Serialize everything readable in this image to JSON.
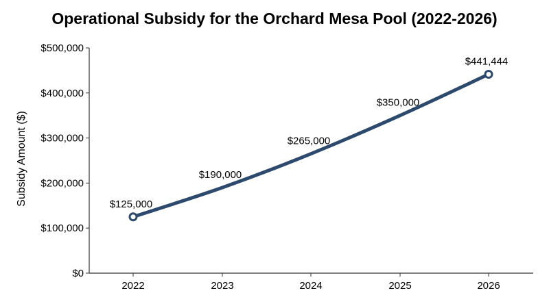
{
  "chart_data": {
    "type": "line",
    "title": "Operational Subsidy for the Orchard Mesa Pool (2022-2026)",
    "xlabel": "",
    "ylabel": "Subsidy Amount ($)",
    "categories": [
      "2022",
      "2023",
      "2024",
      "2025",
      "2026"
    ],
    "series": [
      {
        "values": [
          125000,
          190000,
          265000,
          350000,
          441444
        ],
        "data_labels": [
          "$125,000",
          "$190,000",
          "$265,000",
          "$350,000",
          "$441,444"
        ],
        "color": "#2d4a6e"
      }
    ],
    "ylim": [
      0,
      500000
    ],
    "yticks": [
      0,
      100000,
      200000,
      300000,
      400000,
      500000
    ],
    "ytick_labels": [
      "$0",
      "$100,000",
      "$200,000",
      "$300,000",
      "$400,000",
      "$500,000"
    ],
    "grid": false,
    "marker_points": [
      "2022",
      "2026"
    ]
  }
}
